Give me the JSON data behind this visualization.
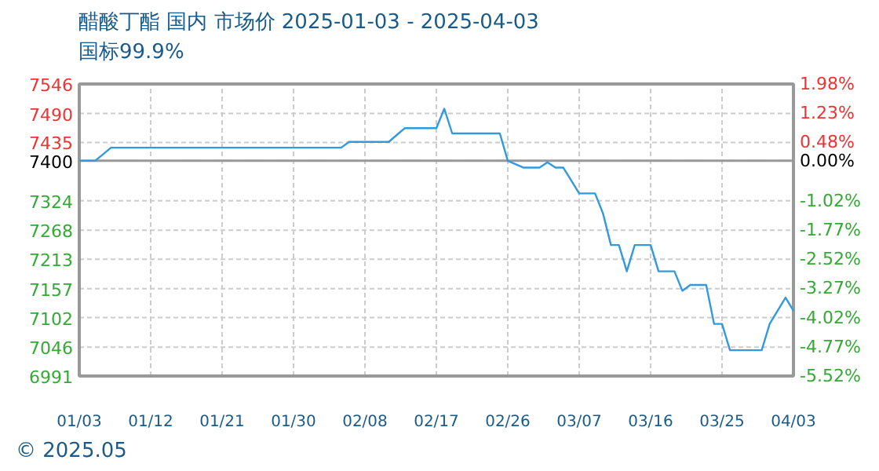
{
  "chart_data": {
    "type": "line",
    "title": "醋酸丁酯 国内 市场价 2025-01-03 - 2025-04-03",
    "subtitle": "国标99.9%",
    "annotations": [
      "© 2025.05"
    ],
    "x": [
      "2025-01-03",
      "2025-01-05",
      "2025-01-07",
      "2025-02-05",
      "2025-02-06",
      "2025-02-11",
      "2025-02-13",
      "2025-02-17",
      "2025-02-18",
      "2025-02-19",
      "2025-02-25",
      "2025-02-26",
      "2025-02-28",
      "2025-03-02",
      "2025-03-03",
      "2025-03-04",
      "2025-03-05",
      "2025-03-07",
      "2025-03-09",
      "2025-03-10",
      "2025-03-11",
      "2025-03-12",
      "2025-03-13",
      "2025-03-14",
      "2025-03-16",
      "2025-03-17",
      "2025-03-19",
      "2025-03-20",
      "2025-03-21",
      "2025-03-23",
      "2025-03-24",
      "2025-03-25",
      "2025-03-26",
      "2025-03-30",
      "2025-03-31",
      "2025-04-02",
      "2025-04-03"
    ],
    "series": [
      {
        "color": "#3399dd",
        "values": [
          7400,
          7400,
          7425,
          7425,
          7436,
          7436,
          7462,
          7462,
          7499,
          7452,
          7452,
          7400,
          7387,
          7387,
          7397,
          7387,
          7387,
          7338,
          7338,
          7300,
          7240,
          7240,
          7190,
          7240,
          7240,
          7190,
          7190,
          7153,
          7164,
          7164,
          7090,
          7090,
          7040,
          7040,
          7090,
          7140,
          7115
        ]
      }
    ],
    "xlim": [
      "2025-01-03",
      "2025-04-03"
    ],
    "xticks": [
      {
        "value": "2025-01-03",
        "label": "01/03"
      },
      {
        "value": "2025-01-12",
        "label": "01/12"
      },
      {
        "value": "2025-01-21",
        "label": "01/21"
      },
      {
        "value": "2025-01-30",
        "label": "01/30"
      },
      {
        "value": "2025-02-08",
        "label": "02/08"
      },
      {
        "value": "2025-02-17",
        "label": "02/17"
      },
      {
        "value": "2025-02-26",
        "label": "02/26"
      },
      {
        "value": "2025-03-07",
        "label": "03/07"
      },
      {
        "value": "2025-03-16",
        "label": "03/16"
      },
      {
        "value": "2025-03-25",
        "label": "03/25"
      },
      {
        "value": "2025-04-03",
        "label": "04/03"
      }
    ],
    "ylim": [
      6991,
      7546
    ],
    "yticks": [
      7546,
      7490,
      7435,
      7400,
      7324,
      7268,
      7213,
      7157,
      7102,
      7046,
      6991
    ],
    "y2lim": [
      -5.52,
      1.98
    ],
    "y2ticks": [
      {
        "value": 1.98,
        "label": "1.98%"
      },
      {
        "value": 1.23,
        "label": "1.23%"
      },
      {
        "value": 0.48,
        "label": "0.48%"
      },
      {
        "value": 0,
        "label": "0.00%"
      },
      {
        "value": -1.02,
        "label": "-1.02%"
      },
      {
        "value": -1.77,
        "label": "-1.77%"
      },
      {
        "value": -2.52,
        "label": "-2.52%"
      },
      {
        "value": -3.27,
        "label": "-3.27%"
      },
      {
        "value": -4.02,
        "label": "-4.02%"
      },
      {
        "value": -4.77,
        "label": "-4.77%"
      },
      {
        "value": -5.52,
        "label": "-5.52%"
      }
    ],
    "ref_lines": [
      {
        "axis": "y",
        "value": 7400,
        "color": "#999999"
      }
    ],
    "grid": true,
    "marker": "none",
    "line_style": "solid"
  }
}
